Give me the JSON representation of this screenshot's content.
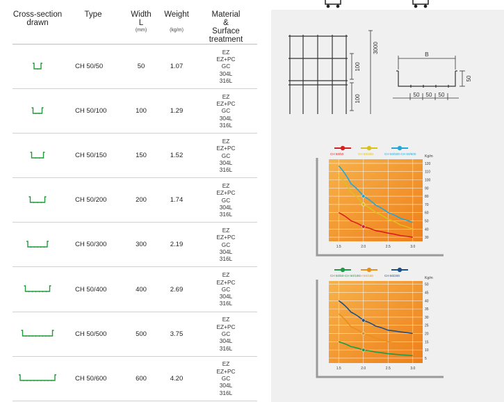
{
  "table": {
    "headers": {
      "cross_section_line1": "Cross-section",
      "cross_section_line2": "drawn",
      "type": "Type",
      "width_line1": "Width",
      "width_line2": "L",
      "width_unit": "(mm)",
      "weight": "Weight",
      "weight_unit": "(kg/m)",
      "material_line1": "Material",
      "material_line2": "&",
      "material_line3": "Surface treatment"
    },
    "rows": [
      {
        "type": "CH  50/50",
        "width": "50",
        "weight": "1.07",
        "materials": [
          "EZ",
          "EZ+PC",
          "GC",
          "304L",
          "316L"
        ]
      },
      {
        "type": "CH  50/100",
        "width": "100",
        "weight": "1.29",
        "materials": [
          "EZ",
          "EZ+PC",
          "GC",
          "304L",
          "316L"
        ]
      },
      {
        "type": "CH  50/150",
        "width": "150",
        "weight": "1.52",
        "materials": [
          "EZ",
          "EZ+PC",
          "GC",
          "304L",
          "316L"
        ]
      },
      {
        "type": "CH  50/200",
        "width": "200",
        "weight": "1.74",
        "materials": [
          "EZ",
          "EZ+PC",
          "GC",
          "304L",
          "316L"
        ]
      },
      {
        "type": "CH  50/300",
        "width": "300",
        "weight": "2.19",
        "materials": [
          "EZ",
          "EZ+PC",
          "GC",
          "304L",
          "316L"
        ]
      },
      {
        "type": "CH  50/400",
        "width": "400",
        "weight": "2.69",
        "materials": [
          "EZ",
          "EZ+PC",
          "GC",
          "304L",
          "316L"
        ]
      },
      {
        "type": "CH  50/500",
        "width": "500",
        "weight": "3.75",
        "materials": [
          "EZ",
          "EZ+PC",
          "GC",
          "304L",
          "316L"
        ]
      },
      {
        "type": "CH  50/600",
        "width": "600",
        "weight": "4.20",
        "materials": [
          "EZ",
          "EZ+PC",
          "GC",
          "304L",
          "316L"
        ]
      }
    ]
  },
  "drawings": {
    "front_height": "3000",
    "front_spacing_a": "100",
    "front_spacing_b": "100",
    "section_width_label": "B",
    "section_height_label": "50",
    "section_mesh_1": "50",
    "section_mesh_2": "50",
    "section_mesh_3": "50"
  },
  "colors": {
    "panel_bg": "#f0f0f0",
    "chart_orange": "#f39a2a",
    "red": "#d81e1e",
    "yellow": "#d9c21a",
    "cyan": "#1fa8d8",
    "green": "#1f9a4a",
    "amber": "#e8901a",
    "navy": "#1a4f8a"
  },
  "chart_data": [
    {
      "type": "line",
      "legend": [
        "CH  50/50",
        "CH  50/400",
        "CH  50/500-CH  50/600"
      ],
      "ylabel": "Kg/m",
      "x_ticks": [
        "1.5",
        "2.0",
        "2.5",
        "3.0"
      ],
      "y_ticks": [
        "120",
        "110",
        "100",
        "90",
        "80",
        "70",
        "60",
        "50",
        "40",
        "30"
      ],
      "xlim": [
        1.3,
        3.2
      ],
      "ylim": [
        25,
        125
      ],
      "marker_x": 2.0,
      "series": [
        {
          "name": "CH  50/50",
          "color": "#d81e1e",
          "x": [
            1.5,
            1.75,
            2.0,
            2.25,
            2.5,
            2.75,
            3.0
          ],
          "y": [
            60,
            50,
            43,
            38,
            35,
            32,
            30
          ]
        },
        {
          "name": "CH  50/400",
          "color": "#d9c21a",
          "x": [
            1.5,
            1.75,
            2.0,
            2.25,
            2.5,
            2.75,
            3.0
          ],
          "y": [
            105,
            85,
            70,
            60,
            52,
            45,
            40
          ]
        },
        {
          "name": "CH  50/500-CH  50/600",
          "color": "#1fa8d8",
          "x": [
            1.5,
            1.75,
            2.0,
            2.25,
            2.5,
            2.75,
            3.0
          ],
          "y": [
            117,
            95,
            80,
            69,
            60,
            53,
            48
          ]
        }
      ]
    },
    {
      "type": "line",
      "legend": [
        "CH  50/50-CH  50/100",
        "CH  50/150",
        "CH  50/200"
      ],
      "ylabel": "Kg/m",
      "x_ticks": [
        "1.5",
        "2.0",
        "2.5",
        "3.0"
      ],
      "y_ticks": [
        "50",
        "45",
        "40",
        "35",
        "30",
        "25",
        "20",
        "15",
        "10",
        "5"
      ],
      "xlim": [
        1.3,
        3.2
      ],
      "ylim": [
        2,
        52
      ],
      "marker_x": 2.0,
      "series": [
        {
          "name": "CH  50/50-CH  50/100",
          "color": "#1f9a4a",
          "x": [
            1.5,
            1.75,
            2.0,
            2.25,
            2.5,
            2.75,
            3.0
          ],
          "y": [
            15,
            12,
            10,
            8.7,
            7.7,
            7,
            6.5
          ]
        },
        {
          "name": "CH  50/150",
          "color": "#e8901a",
          "x": [
            1.5,
            1.75,
            2.0,
            2.25,
            2.5,
            2.75,
            3.0
          ],
          "y": [
            32,
            24,
            20,
            17,
            15,
            13.5,
            12
          ]
        },
        {
          "name": "CH  50/200",
          "color": "#1a4f8a",
          "x": [
            1.5,
            1.75,
            2.0,
            2.25,
            2.5,
            2.75,
            3.0
          ],
          "y": [
            40,
            33,
            28,
            24.5,
            22,
            21,
            20
          ]
        }
      ]
    }
  ]
}
